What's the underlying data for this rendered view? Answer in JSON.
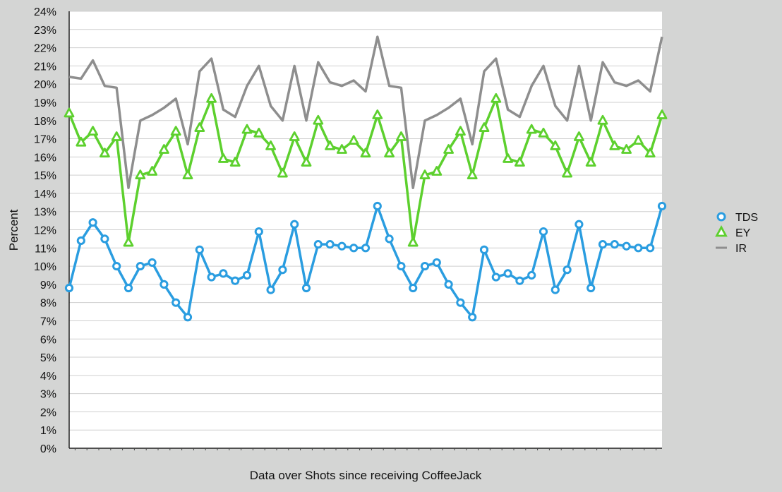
{
  "chart_data": {
    "type": "line",
    "x": [
      1,
      2,
      3,
      4,
      5,
      6,
      7,
      8,
      9,
      10,
      11,
      12,
      13,
      14,
      15,
      16,
      17,
      18,
      19,
      20,
      21,
      22,
      23,
      24,
      25,
      26,
      27,
      28,
      29,
      30,
      31,
      32,
      33,
      34,
      35,
      36,
      37,
      38,
      39,
      40,
      41,
      42,
      43,
      44,
      45,
      46,
      47,
      48,
      49,
      50,
      51
    ],
    "xlabel": "Data over Shots since receiving CoffeeJack",
    "ylabel": "Percent",
    "ylim": [
      0,
      24
    ],
    "yticks": [
      0,
      1,
      2,
      3,
      4,
      5,
      6,
      7,
      8,
      9,
      10,
      11,
      12,
      13,
      14,
      15,
      16,
      17,
      18,
      19,
      20,
      21,
      22,
      23,
      24
    ],
    "ytick_labels": [
      "0%",
      "1%",
      "2%",
      "3%",
      "4%",
      "5%",
      "6%",
      "7%",
      "8%",
      "9%",
      "10%",
      "11%",
      "12%",
      "13%",
      "14%",
      "15%",
      "16%",
      "17%",
      "18%",
      "19%",
      "20%",
      "21%",
      "22%",
      "23%",
      "24%"
    ],
    "grid": "horizontal",
    "legend_position": "right",
    "series": [
      {
        "name": "TDS",
        "color": "#2a9de0",
        "marker": "circle",
        "values": [
          8.8,
          11.4,
          12.4,
          11.5,
          10.0,
          8.8,
          10.0,
          10.2,
          9.0,
          8.0,
          7.2,
          10.9,
          9.4,
          9.6,
          9.2,
          9.5,
          11.9,
          8.7,
          9.8,
          12.3,
          8.8,
          11.2,
          11.2,
          11.1,
          11.0,
          11.0,
          13.3,
          11.5,
          10.0,
          8.8,
          10.0,
          10.2,
          9.0,
          8.0,
          7.2,
          10.9,
          9.4,
          9.6,
          9.2,
          9.5,
          11.9,
          8.7,
          9.8,
          12.3,
          8.8,
          11.2,
          11.2,
          11.1,
          11.0,
          11.0,
          13.3
        ]
      },
      {
        "name": "EY",
        "color": "#5dd02e",
        "marker": "triangle",
        "values": [
          18.4,
          16.8,
          17.4,
          16.2,
          17.1,
          11.3,
          15.0,
          15.2,
          16.4,
          17.4,
          15.0,
          17.6,
          19.2,
          15.9,
          15.7,
          17.5,
          17.3,
          16.6,
          15.1,
          17.1,
          15.7,
          18.0,
          16.6,
          16.4,
          16.9,
          16.2,
          18.3,
          16.2,
          17.1,
          11.3,
          15.0,
          15.2,
          16.4,
          17.4,
          15.0,
          17.6,
          19.2,
          15.9,
          15.7,
          17.5,
          17.3,
          16.6,
          15.1,
          17.1,
          15.7,
          18.0,
          16.6,
          16.4,
          16.9,
          16.2,
          18.3
        ]
      },
      {
        "name": "IR",
        "color": "#8e8e8e",
        "marker": "none",
        "values": [
          20.4,
          20.3,
          21.3,
          19.9,
          19.8,
          14.3,
          18.0,
          18.3,
          18.7,
          19.2,
          16.7,
          20.7,
          21.4,
          18.6,
          18.2,
          19.9,
          21.0,
          18.8,
          18.0,
          21.0,
          18.0,
          21.2,
          20.1,
          19.9,
          20.2,
          19.6,
          22.6,
          19.9,
          19.8,
          14.3,
          18.0,
          18.3,
          18.7,
          19.2,
          16.7,
          20.7,
          21.4,
          18.6,
          18.2,
          19.9,
          21.0,
          18.8,
          18.0,
          21.0,
          18.0,
          21.2,
          20.1,
          19.9,
          20.2,
          19.6,
          22.6
        ]
      }
    ]
  }
}
